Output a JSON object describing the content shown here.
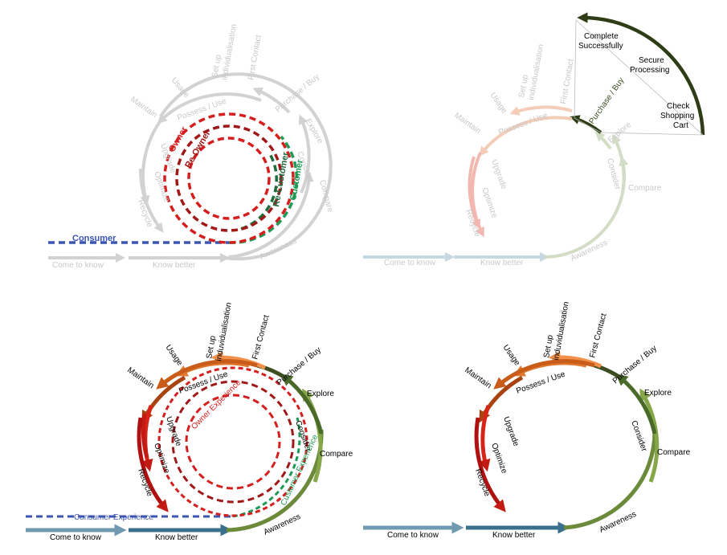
{
  "panels": {
    "top_left": {
      "stage_labels": {
        "come_to_know": "Come to know",
        "know_better": "Know better",
        "awareness": "Awareness",
        "compare": "Compare",
        "consider": "Consider",
        "explore": "Explore",
        "purchase_buy": "Purchase / Buy",
        "first_contact": "First Contact",
        "set_up": "Set up",
        "individualisation": "individualisation",
        "usage": "Usage",
        "maintain": "Maintain",
        "optimize": "Optimize",
        "upgrade": "Upgrade",
        "recycle": "Recycle",
        "possess_use": "Possess / Use"
      },
      "role_labels": {
        "consumer": "Consumer",
        "customer": "Customer",
        "re_customer": "Re-Customer",
        "owner": "Owner",
        "re_owner": "Re-Owner"
      }
    },
    "top_right": {
      "stage_labels": {
        "come_to_know": "Come to know",
        "know_better": "Know better",
        "awareness": "Awareness",
        "compare": "Compare",
        "consider": "Consider",
        "explore": "Explore",
        "purchase_buy": "Purchase / Buy",
        "first_contact": "First Contact",
        "set_up": "Set up",
        "individualisation": "individualisation",
        "usage": "Usage",
        "maintain": "Maintain",
        "optimize": "Optimize",
        "upgrade": "Upgrade",
        "recycle": "Recycle",
        "possess_use": "Possess / Use"
      },
      "purchase_steps": {
        "check": "Check",
        "shopping": "Shopping",
        "cart": "Cart",
        "secure": "Secure",
        "processing": "Processing",
        "complete": "Complete",
        "successfully": "Successfully"
      }
    },
    "bottom_left": {
      "stage_labels": {
        "come_to_know": "Come to know",
        "know_better": "Know better",
        "awareness": "Awareness",
        "compare": "Compare",
        "consider": "Consider",
        "explore": "Explore",
        "purchase_buy": "Purchase / Buy",
        "first_contact": "First Contact",
        "set_up": "Set up",
        "individualisation": "induvidualisation",
        "usage": "Usage",
        "maintain": "Maintain",
        "optimize": "Optimize",
        "upgrade": "Upgrade",
        "recycle": "Recycle",
        "possess_use": "Possess / Use"
      },
      "experience_labels": {
        "consumer": "Consumer Experience",
        "customer": "Customer Experience",
        "owner": "Owner Experience"
      }
    },
    "bottom_right": {
      "stage_labels": {
        "come_to_know": "Come to know",
        "know_better": "Know better",
        "awareness": "Awareness",
        "compare": "Compare",
        "consider": "Consider",
        "explore": "Explore",
        "purchase_buy": "Purchase / Buy",
        "first_contact": "First Contact",
        "set_up": "Set up",
        "individualisation": "induvidualisation",
        "usage": "Usage",
        "maintain": "Maintain",
        "optimize": "Optimize",
        "upgrade": "Upgrade",
        "recycle": "Recycle",
        "possess_use": "Possess / Use"
      }
    }
  },
  "colors": {
    "faded_gray": "#d2d2d2",
    "faded_text": "#c8c8c8",
    "consumer_blue": "#3b55b0",
    "customer_green": "#1e9a55",
    "re_customer_green": "#1e6b3e",
    "owner_red": "#d51e1e",
    "re_owner_red": "#a01818",
    "come_to_know_blue": "#6f9ab0",
    "know_better_blue": "#3a6f8e",
    "awareness_green": "#6b8a3a",
    "compare_green": "#86a64a",
    "consider_green": "#4a6a2a",
    "purchase_dark": "#3d4d22",
    "first_contact_orange": "#f0904a",
    "setup_orange": "#e07830",
    "usage_orange": "#c95c18",
    "maintain_brown": "#a84412",
    "upgrade_red": "#d62418",
    "optimize_red": "#c41a14",
    "recycle_red": "#b01010"
  }
}
